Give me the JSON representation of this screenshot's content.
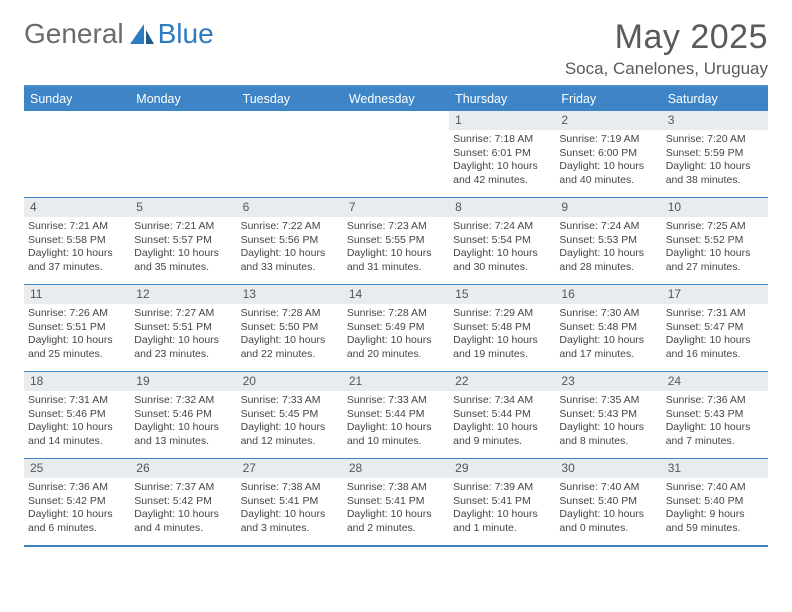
{
  "logo": {
    "word1": "General",
    "word2": "Blue"
  },
  "header": {
    "month_title": "May 2025",
    "location": "Soca, Canelones, Uruguay"
  },
  "colors": {
    "header_bar": "#3d85c6",
    "rule": "#4a90c9",
    "daynum_bg": "#e9ecef",
    "text": "#454545",
    "title_text": "#5a5a5a"
  },
  "weekdays": [
    "Sunday",
    "Monday",
    "Tuesday",
    "Wednesday",
    "Thursday",
    "Friday",
    "Saturday"
  ],
  "weeks": [
    [
      {
        "day": "",
        "sunrise": "",
        "sunset": "",
        "daylight1": "",
        "daylight2": ""
      },
      {
        "day": "",
        "sunrise": "",
        "sunset": "",
        "daylight1": "",
        "daylight2": ""
      },
      {
        "day": "",
        "sunrise": "",
        "sunset": "",
        "daylight1": "",
        "daylight2": ""
      },
      {
        "day": "",
        "sunrise": "",
        "sunset": "",
        "daylight1": "",
        "daylight2": ""
      },
      {
        "day": "1",
        "sunrise": "Sunrise: 7:18 AM",
        "sunset": "Sunset: 6:01 PM",
        "daylight1": "Daylight: 10 hours",
        "daylight2": "and 42 minutes."
      },
      {
        "day": "2",
        "sunrise": "Sunrise: 7:19 AM",
        "sunset": "Sunset: 6:00 PM",
        "daylight1": "Daylight: 10 hours",
        "daylight2": "and 40 minutes."
      },
      {
        "day": "3",
        "sunrise": "Sunrise: 7:20 AM",
        "sunset": "Sunset: 5:59 PM",
        "daylight1": "Daylight: 10 hours",
        "daylight2": "and 38 minutes."
      }
    ],
    [
      {
        "day": "4",
        "sunrise": "Sunrise: 7:21 AM",
        "sunset": "Sunset: 5:58 PM",
        "daylight1": "Daylight: 10 hours",
        "daylight2": "and 37 minutes."
      },
      {
        "day": "5",
        "sunrise": "Sunrise: 7:21 AM",
        "sunset": "Sunset: 5:57 PM",
        "daylight1": "Daylight: 10 hours",
        "daylight2": "and 35 minutes."
      },
      {
        "day": "6",
        "sunrise": "Sunrise: 7:22 AM",
        "sunset": "Sunset: 5:56 PM",
        "daylight1": "Daylight: 10 hours",
        "daylight2": "and 33 minutes."
      },
      {
        "day": "7",
        "sunrise": "Sunrise: 7:23 AM",
        "sunset": "Sunset: 5:55 PM",
        "daylight1": "Daylight: 10 hours",
        "daylight2": "and 31 minutes."
      },
      {
        "day": "8",
        "sunrise": "Sunrise: 7:24 AM",
        "sunset": "Sunset: 5:54 PM",
        "daylight1": "Daylight: 10 hours",
        "daylight2": "and 30 minutes."
      },
      {
        "day": "9",
        "sunrise": "Sunrise: 7:24 AM",
        "sunset": "Sunset: 5:53 PM",
        "daylight1": "Daylight: 10 hours",
        "daylight2": "and 28 minutes."
      },
      {
        "day": "10",
        "sunrise": "Sunrise: 7:25 AM",
        "sunset": "Sunset: 5:52 PM",
        "daylight1": "Daylight: 10 hours",
        "daylight2": "and 27 minutes."
      }
    ],
    [
      {
        "day": "11",
        "sunrise": "Sunrise: 7:26 AM",
        "sunset": "Sunset: 5:51 PM",
        "daylight1": "Daylight: 10 hours",
        "daylight2": "and 25 minutes."
      },
      {
        "day": "12",
        "sunrise": "Sunrise: 7:27 AM",
        "sunset": "Sunset: 5:51 PM",
        "daylight1": "Daylight: 10 hours",
        "daylight2": "and 23 minutes."
      },
      {
        "day": "13",
        "sunrise": "Sunrise: 7:28 AM",
        "sunset": "Sunset: 5:50 PM",
        "daylight1": "Daylight: 10 hours",
        "daylight2": "and 22 minutes."
      },
      {
        "day": "14",
        "sunrise": "Sunrise: 7:28 AM",
        "sunset": "Sunset: 5:49 PM",
        "daylight1": "Daylight: 10 hours",
        "daylight2": "and 20 minutes."
      },
      {
        "day": "15",
        "sunrise": "Sunrise: 7:29 AM",
        "sunset": "Sunset: 5:48 PM",
        "daylight1": "Daylight: 10 hours",
        "daylight2": "and 19 minutes."
      },
      {
        "day": "16",
        "sunrise": "Sunrise: 7:30 AM",
        "sunset": "Sunset: 5:48 PM",
        "daylight1": "Daylight: 10 hours",
        "daylight2": "and 17 minutes."
      },
      {
        "day": "17",
        "sunrise": "Sunrise: 7:31 AM",
        "sunset": "Sunset: 5:47 PM",
        "daylight1": "Daylight: 10 hours",
        "daylight2": "and 16 minutes."
      }
    ],
    [
      {
        "day": "18",
        "sunrise": "Sunrise: 7:31 AM",
        "sunset": "Sunset: 5:46 PM",
        "daylight1": "Daylight: 10 hours",
        "daylight2": "and 14 minutes."
      },
      {
        "day": "19",
        "sunrise": "Sunrise: 7:32 AM",
        "sunset": "Sunset: 5:46 PM",
        "daylight1": "Daylight: 10 hours",
        "daylight2": "and 13 minutes."
      },
      {
        "day": "20",
        "sunrise": "Sunrise: 7:33 AM",
        "sunset": "Sunset: 5:45 PM",
        "daylight1": "Daylight: 10 hours",
        "daylight2": "and 12 minutes."
      },
      {
        "day": "21",
        "sunrise": "Sunrise: 7:33 AM",
        "sunset": "Sunset: 5:44 PM",
        "daylight1": "Daylight: 10 hours",
        "daylight2": "and 10 minutes."
      },
      {
        "day": "22",
        "sunrise": "Sunrise: 7:34 AM",
        "sunset": "Sunset: 5:44 PM",
        "daylight1": "Daylight: 10 hours",
        "daylight2": "and 9 minutes."
      },
      {
        "day": "23",
        "sunrise": "Sunrise: 7:35 AM",
        "sunset": "Sunset: 5:43 PM",
        "daylight1": "Daylight: 10 hours",
        "daylight2": "and 8 minutes."
      },
      {
        "day": "24",
        "sunrise": "Sunrise: 7:36 AM",
        "sunset": "Sunset: 5:43 PM",
        "daylight1": "Daylight: 10 hours",
        "daylight2": "and 7 minutes."
      }
    ],
    [
      {
        "day": "25",
        "sunrise": "Sunrise: 7:36 AM",
        "sunset": "Sunset: 5:42 PM",
        "daylight1": "Daylight: 10 hours",
        "daylight2": "and 6 minutes."
      },
      {
        "day": "26",
        "sunrise": "Sunrise: 7:37 AM",
        "sunset": "Sunset: 5:42 PM",
        "daylight1": "Daylight: 10 hours",
        "daylight2": "and 4 minutes."
      },
      {
        "day": "27",
        "sunrise": "Sunrise: 7:38 AM",
        "sunset": "Sunset: 5:41 PM",
        "daylight1": "Daylight: 10 hours",
        "daylight2": "and 3 minutes."
      },
      {
        "day": "28",
        "sunrise": "Sunrise: 7:38 AM",
        "sunset": "Sunset: 5:41 PM",
        "daylight1": "Daylight: 10 hours",
        "daylight2": "and 2 minutes."
      },
      {
        "day": "29",
        "sunrise": "Sunrise: 7:39 AM",
        "sunset": "Sunset: 5:41 PM",
        "daylight1": "Daylight: 10 hours",
        "daylight2": "and 1 minute."
      },
      {
        "day": "30",
        "sunrise": "Sunrise: 7:40 AM",
        "sunset": "Sunset: 5:40 PM",
        "daylight1": "Daylight: 10 hours",
        "daylight2": "and 0 minutes."
      },
      {
        "day": "31",
        "sunrise": "Sunrise: 7:40 AM",
        "sunset": "Sunset: 5:40 PM",
        "daylight1": "Daylight: 9 hours",
        "daylight2": "and 59 minutes."
      }
    ]
  ]
}
